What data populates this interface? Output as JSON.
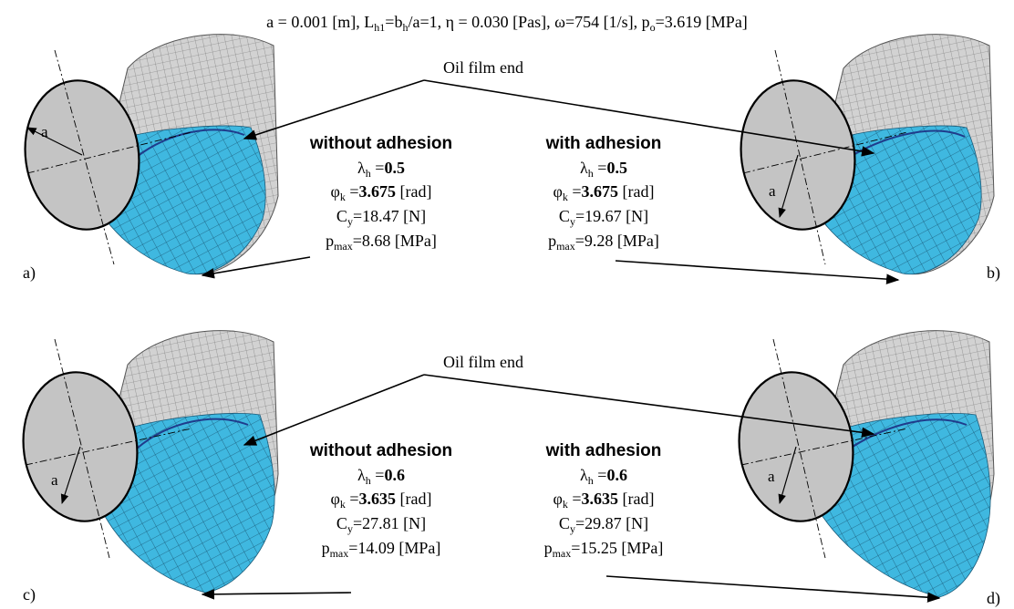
{
  "header": {
    "a": "a = 0.001 [m], L",
    "lsub": "h1",
    "b": "=b",
    "bsub": "h",
    "c": "/a=1,  η = 0.030 [Pas], ω=754 [1/s], p",
    "psub": "o",
    "d": "=3.619 [MPa]"
  },
  "oil_film_label": "Oil film end",
  "radius_label": "a",
  "colors": {
    "mesh_blue": "#3fb8e0",
    "mesh_grey": "#d2d2d2",
    "disk": "#c4c4c4",
    "film_line": "#1f3c8c"
  },
  "panels": [
    {
      "letter": "a)",
      "mode": "without adhesion",
      "lambda_sym": "λ",
      "lambda_sub": "h",
      "lambda_eq": " =",
      "lambda_val": "0.5",
      "phi_sym": "φ",
      "phi_sub": "k",
      "phi_eq": " =",
      "phi_val": "3.675",
      "phi_unit": " [rad]",
      "c_sym": "C",
      "c_sub": "y",
      "c_rest": "=18.47 [N]",
      "p_sym": "p",
      "p_sub": "max",
      "p_rest": "=8.68 [MPa]"
    },
    {
      "letter": "b)",
      "mode": "with adhesion",
      "lambda_sym": "λ",
      "lambda_sub": "h",
      "lambda_eq": " =",
      "lambda_val": "0.5",
      "phi_sym": "φ",
      "phi_sub": "k",
      "phi_eq": " =",
      "phi_val": "3.675",
      "phi_unit": " [rad]",
      "c_sym": "C",
      "c_sub": "y",
      "c_rest": "=19.67 [N]",
      "p_sym": "p",
      "p_sub": "max",
      "p_rest": "=9.28 [MPa]"
    },
    {
      "letter": "c)",
      "mode": "without adhesion",
      "lambda_sym": "λ",
      "lambda_sub": "h",
      "lambda_eq": " =",
      "lambda_val": "0.6",
      "phi_sym": "φ",
      "phi_sub": "k",
      "phi_eq": " =",
      "phi_val": "3.635",
      "phi_unit": " [rad]",
      "c_sym": "C",
      "c_sub": "y",
      "c_rest": "=27.81 [N]",
      "p_sym": "p",
      "p_sub": "max",
      "p_rest": "=14.09 [MPa]"
    },
    {
      "letter": "d)",
      "mode": "with adhesion",
      "lambda_sym": "λ",
      "lambda_sub": "h",
      "lambda_eq": " =",
      "lambda_val": "0.6",
      "phi_sym": "φ",
      "phi_sub": "k",
      "phi_eq": " =",
      "phi_val": "3.635",
      "phi_unit": " [rad]",
      "c_sym": "C",
      "c_sub": "y",
      "c_rest": "=29.87 [N]",
      "p_sym": "p",
      "p_sub": "max",
      "p_rest": "=15.25 [MPa]"
    }
  ]
}
